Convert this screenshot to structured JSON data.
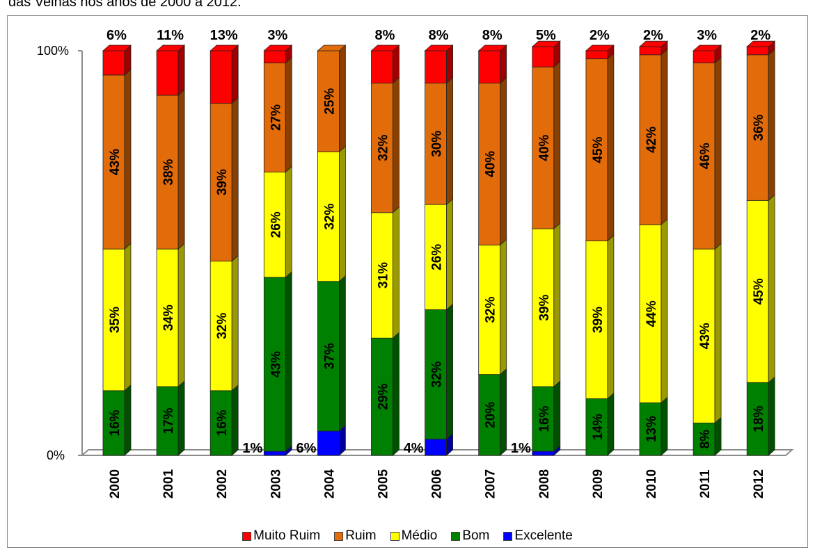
{
  "caption": "das Velhas nos anos de 2000 a 2012.",
  "chart_data": {
    "type": "bar",
    "stacked": true,
    "percent": true,
    "categories": [
      "2000",
      "2001",
      "2002",
      "2003",
      "2004",
      "2005",
      "2006",
      "2007",
      "2008",
      "2009",
      "2010",
      "2011",
      "2012"
    ],
    "series": [
      {
        "name": "Excelente",
        "color": "#0000ff",
        "side": "#00009a",
        "values": [
          0,
          0,
          0,
          1,
          6,
          0,
          4,
          0,
          1,
          0,
          0,
          0,
          0
        ],
        "labels": [
          "",
          "",
          "",
          "1%",
          "6%",
          "",
          "4%",
          "",
          "1%",
          "",
          "",
          "",
          ""
        ]
      },
      {
        "name": "Bom",
        "color": "#008000",
        "side": "#005000",
        "values": [
          16,
          17,
          16,
          43,
          37,
          29,
          32,
          20,
          16,
          14,
          13,
          8,
          18
        ],
        "labels": [
          "16%",
          "17%",
          "16%",
          "43%",
          "37%",
          "29%",
          "32%",
          "20%",
          "16%",
          "14%",
          "13%",
          "8%",
          "18%"
        ]
      },
      {
        "name": "Médio",
        "color": "#ffff00",
        "side": "#9a9a00",
        "values": [
          35,
          34,
          32,
          26,
          32,
          31,
          26,
          32,
          39,
          39,
          44,
          43,
          45
        ],
        "labels": [
          "35%",
          "34%",
          "32%",
          "26%",
          "32%",
          "31%",
          "26%",
          "32%",
          "39%",
          "39%",
          "44%",
          "43%",
          "45%"
        ]
      },
      {
        "name": "Ruim",
        "color": "#e26b0a",
        "side": "#8a4000",
        "values": [
          43,
          38,
          39,
          27,
          25,
          32,
          30,
          40,
          40,
          45,
          42,
          46,
          36
        ],
        "labels": [
          "43%",
          "38%",
          "39%",
          "27%",
          "25%",
          "32%",
          "30%",
          "40%",
          "40%",
          "45%",
          "42%",
          "46%",
          "36%"
        ]
      },
      {
        "name": "Muito Ruim",
        "color": "#ff0000",
        "side": "#a00000",
        "values": [
          6,
          11,
          13,
          3,
          0,
          8,
          8,
          8,
          5,
          2,
          2,
          3,
          2
        ],
        "labels": [
          "6%",
          "11%",
          "13%",
          "3%",
          "",
          "8%",
          "8%",
          "8%",
          "5%",
          "2%",
          "2%",
          "3%",
          "2%"
        ]
      }
    ],
    "y_ticks": [
      "0%",
      "100%"
    ],
    "ylim": [
      0,
      100
    ],
    "legend": {
      "position": "bottom",
      "items": [
        {
          "name": "Muito Ruim",
          "color": "#ff0000"
        },
        {
          "name": "Ruim",
          "color": "#e26b0a"
        },
        {
          "name": "Médio",
          "color": "#ffff00"
        },
        {
          "name": "Bom",
          "color": "#008000"
        },
        {
          "name": "Excelente",
          "color": "#0000ff"
        }
      ]
    },
    "grid": false
  }
}
